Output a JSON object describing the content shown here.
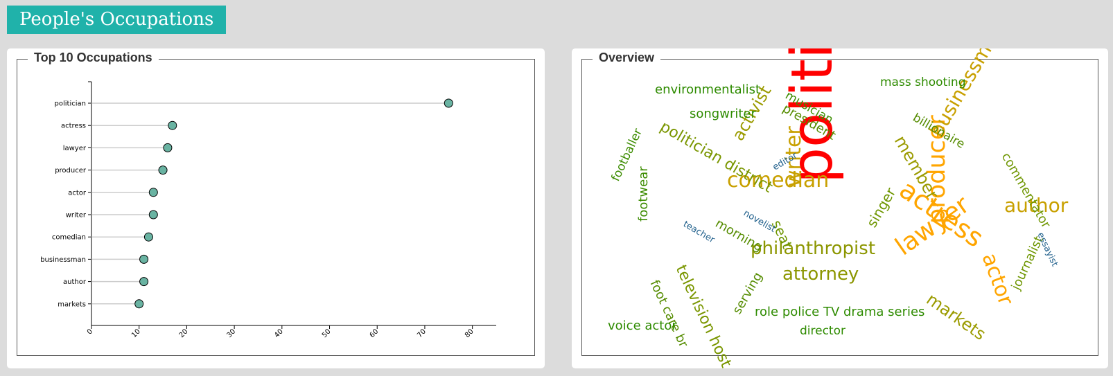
{
  "header": {
    "title": "People's Occupations"
  },
  "panels": {
    "left_title": "Top 10 Occupations",
    "right_title": "Overview"
  },
  "chart_data": {
    "type": "lollipop",
    "categories": [
      "politician",
      "actress",
      "lawyer",
      "producer",
      "actor",
      "writer",
      "comedian",
      "businessman",
      "author",
      "markets"
    ],
    "values": [
      75,
      17,
      16,
      15,
      13,
      13,
      12,
      11,
      11,
      10
    ],
    "xlim": [
      0,
      85
    ],
    "xticks": [
      0,
      10,
      20,
      30,
      40,
      50,
      60,
      70,
      80
    ],
    "grid": false,
    "colors": {
      "dot": "#69b3a2",
      "line": "#cccccc"
    }
  },
  "wordcloud": {
    "words": [
      {
        "text": "politician",
        "color": "#ff0000"
      },
      {
        "text": "actress",
        "color": "#ffa500"
      },
      {
        "text": "lawyer",
        "color": "#ffa500"
      },
      {
        "text": "producer",
        "color": "#ffa500"
      },
      {
        "text": "actor",
        "color": "#ffa500"
      },
      {
        "text": "writer",
        "color": "#c8a000"
      },
      {
        "text": "comedian",
        "color": "#c8a000"
      },
      {
        "text": "businessman",
        "color": "#c8a000"
      },
      {
        "text": "author",
        "color": "#c8a000"
      },
      {
        "text": "markets",
        "color": "#9b9b00"
      },
      {
        "text": "philanthropist",
        "color": "#8c9600"
      },
      {
        "text": "attorney",
        "color": "#8c9600"
      },
      {
        "text": "member",
        "color": "#9b9b00"
      },
      {
        "text": "activist",
        "color": "#9b9b00"
      },
      {
        "text": "politician district",
        "color": "#7a9600"
      },
      {
        "text": "television host",
        "color": "#7a9600"
      },
      {
        "text": "seat",
        "color": "#6e9600"
      },
      {
        "text": "singer",
        "color": "#6e9600"
      },
      {
        "text": "commentator",
        "color": "#6e9600"
      },
      {
        "text": "journalist",
        "color": "#6e9600"
      },
      {
        "text": "president",
        "color": "#558c00"
      },
      {
        "text": "billionaire",
        "color": "#558c00"
      },
      {
        "text": "morning",
        "color": "#558c00"
      },
      {
        "text": "foot care br",
        "color": "#558c00"
      },
      {
        "text": "serving",
        "color": "#558c00"
      },
      {
        "text": "footwear",
        "color": "#3c8c00"
      },
      {
        "text": "footballer",
        "color": "#3c8c00"
      },
      {
        "text": "musician",
        "color": "#3c8c00"
      },
      {
        "text": "environmentalist",
        "color": "#2e8b00"
      },
      {
        "text": "songwriter",
        "color": "#2e8b00"
      },
      {
        "text": "mass shooting",
        "color": "#2e8b00"
      },
      {
        "text": "role police TV drama series",
        "color": "#2e8b00"
      },
      {
        "text": "voice actor",
        "color": "#2e8b00"
      },
      {
        "text": "director",
        "color": "#2e8b00"
      },
      {
        "text": "editor",
        "color": "#1f5f8b"
      },
      {
        "text": "novelist",
        "color": "#1f5f8b"
      },
      {
        "text": "teacher",
        "color": "#1f5f8b"
      },
      {
        "text": "essayist",
        "color": "#1f5f8b"
      }
    ]
  }
}
